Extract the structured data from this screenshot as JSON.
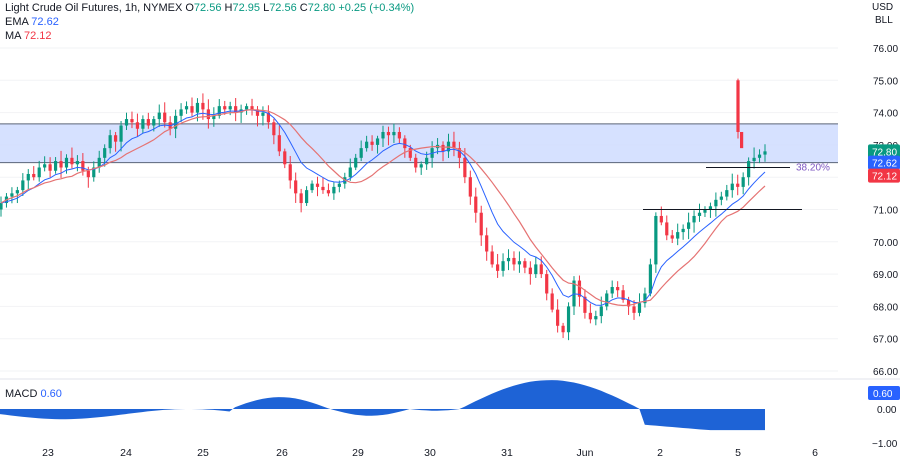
{
  "header": {
    "symbol": "Light Crude Oil Futures, 1h, NYMEX",
    "ohlc": {
      "o_label": "O",
      "o": "72.56",
      "h_label": "H",
      "h": "72.95",
      "l_label": "L",
      "l": "72.56",
      "c_label": "C",
      "c": "72.80",
      "change": "+0.25 (+0.34%)"
    },
    "ema_label": "EMA",
    "ema_value": "72.62",
    "ma_label": "MA",
    "ma_value": "72.12"
  },
  "units": {
    "currency": "USD",
    "unit": "BLL"
  },
  "colors": {
    "up": "#089981",
    "down": "#f23645",
    "ema": "#2962ff",
    "ma": "#e57373",
    "zone": "#cfdcff",
    "macd": "#1e63d6",
    "price_badge": "#089981",
    "ema_badge": "#2962ff",
    "ma_badge": "#f23645"
  },
  "price_axis": {
    "min": 66.0,
    "max": 76.0,
    "ticks": [
      "76.00",
      "75.00",
      "74.00",
      "73.00",
      "72.00",
      "71.00",
      "70.00",
      "69.00",
      "68.00",
      "67.00",
      "66.00"
    ]
  },
  "badges": {
    "price": "72.80",
    "ema": "72.62",
    "ma": "72.12"
  },
  "fib_label": "38.20%",
  "macd": {
    "label": "MACD",
    "value": "0.60",
    "badge": "0.60",
    "ticks": [
      "0.00",
      "−1.00"
    ]
  },
  "time_axis": {
    "labels": [
      "23",
      "24",
      "25",
      "26",
      "29",
      "30",
      "31",
      "Jun",
      "2",
      "5",
      "6"
    ]
  },
  "chart_data": {
    "type": "candlestick",
    "title": "Light Crude Oil Futures, 1h, NYMEX",
    "ylabel": "USD BLL",
    "ylim": [
      66,
      76
    ],
    "zone": [
      72.45,
      73.65
    ],
    "fib_level": {
      "label": "38.20%",
      "value": 72.3
    },
    "support_level": 71.0,
    "series": [
      {
        "name": "EMA",
        "last": 72.62
      },
      {
        "name": "MA",
        "last": 72.12
      },
      {
        "name": "MACD",
        "last": 0.6
      }
    ],
    "closes": [
      71.2,
      71.4,
      71.5,
      71.6,
      71.9,
      72.1,
      72.0,
      72.3,
      72.4,
      72.2,
      72.5,
      72.3,
      72.6,
      72.4,
      72.5,
      72.2,
      72.0,
      72.3,
      72.6,
      72.9,
      73.3,
      73.1,
      73.6,
      73.8,
      73.7,
      73.5,
      73.8,
      73.6,
      73.8,
      74.0,
      73.7,
      73.5,
      73.9,
      74.1,
      74.2,
      74.0,
      74.3,
      74.1,
      73.8,
      73.9,
      74.2,
      74.1,
      74.2,
      74.0,
      74.1,
      74.2,
      74.1,
      73.9,
      74.0,
      73.7,
      73.3,
      72.8,
      72.4,
      71.9,
      71.5,
      71.2,
      71.6,
      71.8,
      71.7,
      71.6,
      71.5,
      71.7,
      71.8,
      72.0,
      72.3,
      72.6,
      72.9,
      73.1,
      73.0,
      73.2,
      73.4,
      73.3,
      73.4,
      73.2,
      72.9,
      72.6,
      72.3,
      72.4,
      72.6,
      72.9,
      73.0,
      72.8,
      73.1,
      72.9,
      72.6,
      72.0,
      71.4,
      70.9,
      70.2,
      69.7,
      69.3,
      69.1,
      69.4,
      69.5,
      69.3,
      69.4,
      69.2,
      69.0,
      69.3,
      69.0,
      68.4,
      67.9,
      67.4,
      67.2,
      68.0,
      68.8,
      68.3,
      67.8,
      67.6,
      67.7,
      68.0,
      68.4,
      68.6,
      68.5,
      68.2,
      68.0,
      67.8,
      68.1,
      68.4,
      69.3,
      70.8,
      70.6,
      70.2,
      70.1,
      70.3,
      70.4,
      70.6,
      70.8,
      70.9,
      71.0,
      71.1,
      71.3,
      71.4,
      71.6,
      71.8,
      71.7,
      72.0,
      72.5,
      72.6,
      72.7,
      72.8
    ]
  }
}
